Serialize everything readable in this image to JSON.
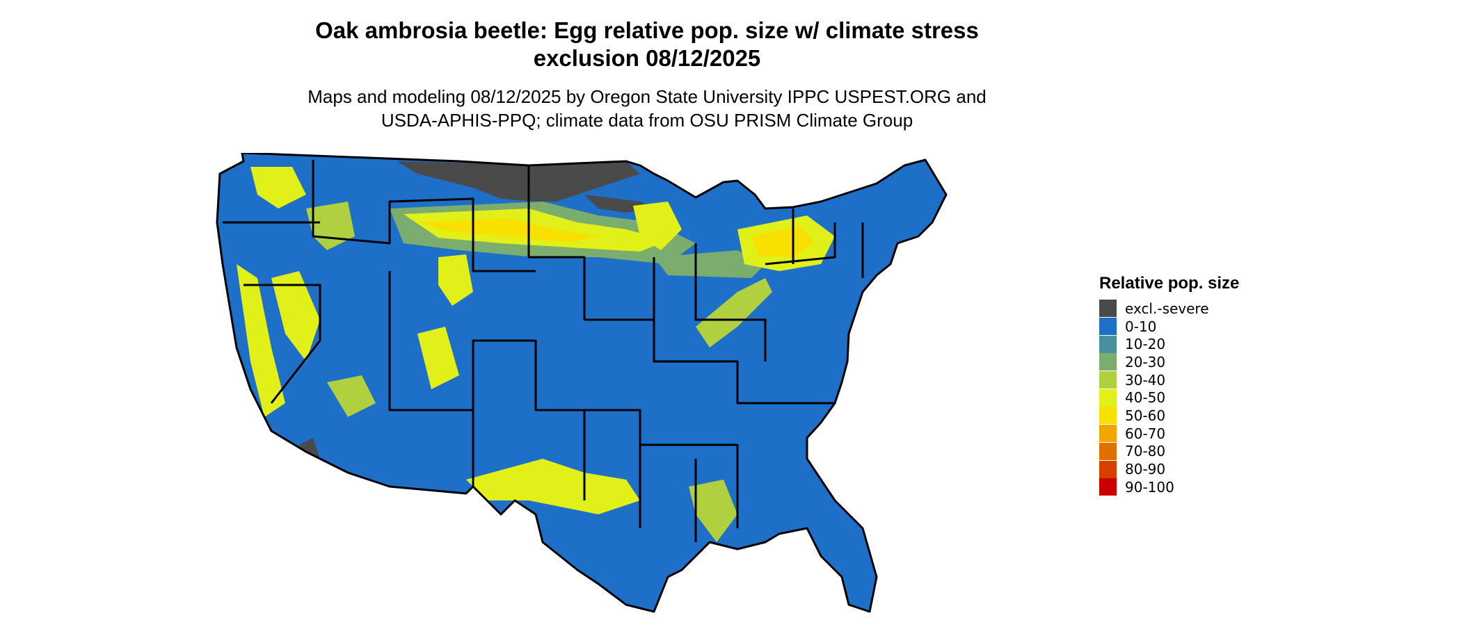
{
  "title": {
    "line1": "Oak ambrosia beetle: Egg relative pop. size w/ climate stress",
    "line2": "exclusion 08/12/2025"
  },
  "subtitle": {
    "line1": "Maps and modeling 08/12/2025 by Oregon State University IPPC USPEST.ORG and",
    "line2": "USDA-APHIS-PPQ; climate data from OSU PRISM Climate Group"
  },
  "legend": {
    "title": "Relative pop. size",
    "items": [
      {
        "label": "excl.-severe",
        "color": "#4a4a4a"
      },
      {
        "label": "0-10",
        "color": "#1e6fc8"
      },
      {
        "label": "10-20",
        "color": "#4a8fa0"
      },
      {
        "label": "20-30",
        "color": "#7aad6e"
      },
      {
        "label": "30-40",
        "color": "#b0d040"
      },
      {
        "label": "40-50",
        "color": "#e2f01a"
      },
      {
        "label": "50-60",
        "color": "#f8e000"
      },
      {
        "label": "60-70",
        "color": "#f0a800"
      },
      {
        "label": "70-80",
        "color": "#e07000"
      },
      {
        "label": "80-90",
        "color": "#d84000"
      },
      {
        "label": "90-100",
        "color": "#cc0000"
      }
    ]
  },
  "map": {
    "base_color": "#1e6fc8",
    "border_color": "#000000"
  }
}
